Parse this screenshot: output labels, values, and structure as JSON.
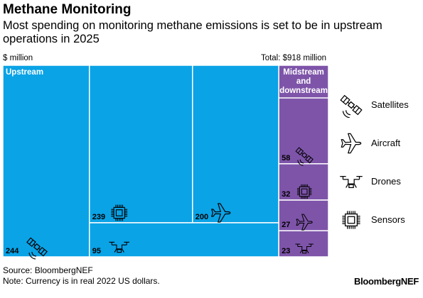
{
  "header": {
    "title": "Methane Monitoring",
    "subtitle": "Most spending on monitoring methane emissions is set to be in upstream operations in 2025",
    "unit_label": "$ million",
    "total_label": "Total: $918 million"
  },
  "footer": {
    "source": "Source: BloombergNEF",
    "note": "Note: Currency is in real 2022 US dollars.",
    "brand": "BloombergNEF"
  },
  "colors": {
    "upstream": "#0aa3e6",
    "midstream": "#7e54a9",
    "border": "#ffffff"
  },
  "chart_data": {
    "type": "treemap",
    "total": 918,
    "unit": "$ million",
    "segments": [
      {
        "name": "Upstream",
        "color": "#0aa3e6",
        "items": [
          {
            "category": "Satellites",
            "value": 244,
            "icon": "satellite-icon"
          },
          {
            "category": "Sensors",
            "value": 239,
            "icon": "sensor-chip-icon"
          },
          {
            "category": "Aircraft",
            "value": 200,
            "icon": "airplane-icon"
          },
          {
            "category": "Drones",
            "value": 95,
            "icon": "drone-icon"
          }
        ]
      },
      {
        "name": "Midstream and downstream",
        "color": "#7e54a9",
        "items": [
          {
            "category": "Satellites",
            "value": 58,
            "icon": "satellite-icon"
          },
          {
            "category": "Sensors",
            "value": 32,
            "icon": "sensor-chip-icon"
          },
          {
            "category": "Aircraft",
            "value": 27,
            "icon": "airplane-icon"
          },
          {
            "category": "Drones",
            "value": 23,
            "icon": "drone-icon"
          }
        ]
      }
    ],
    "legend": [
      {
        "label": "Satellites",
        "icon": "satellite-icon"
      },
      {
        "label": "Aircraft",
        "icon": "airplane-icon"
      },
      {
        "label": "Drones",
        "icon": "drone-icon"
      },
      {
        "label": "Sensors",
        "icon": "sensor-chip-icon"
      }
    ]
  }
}
